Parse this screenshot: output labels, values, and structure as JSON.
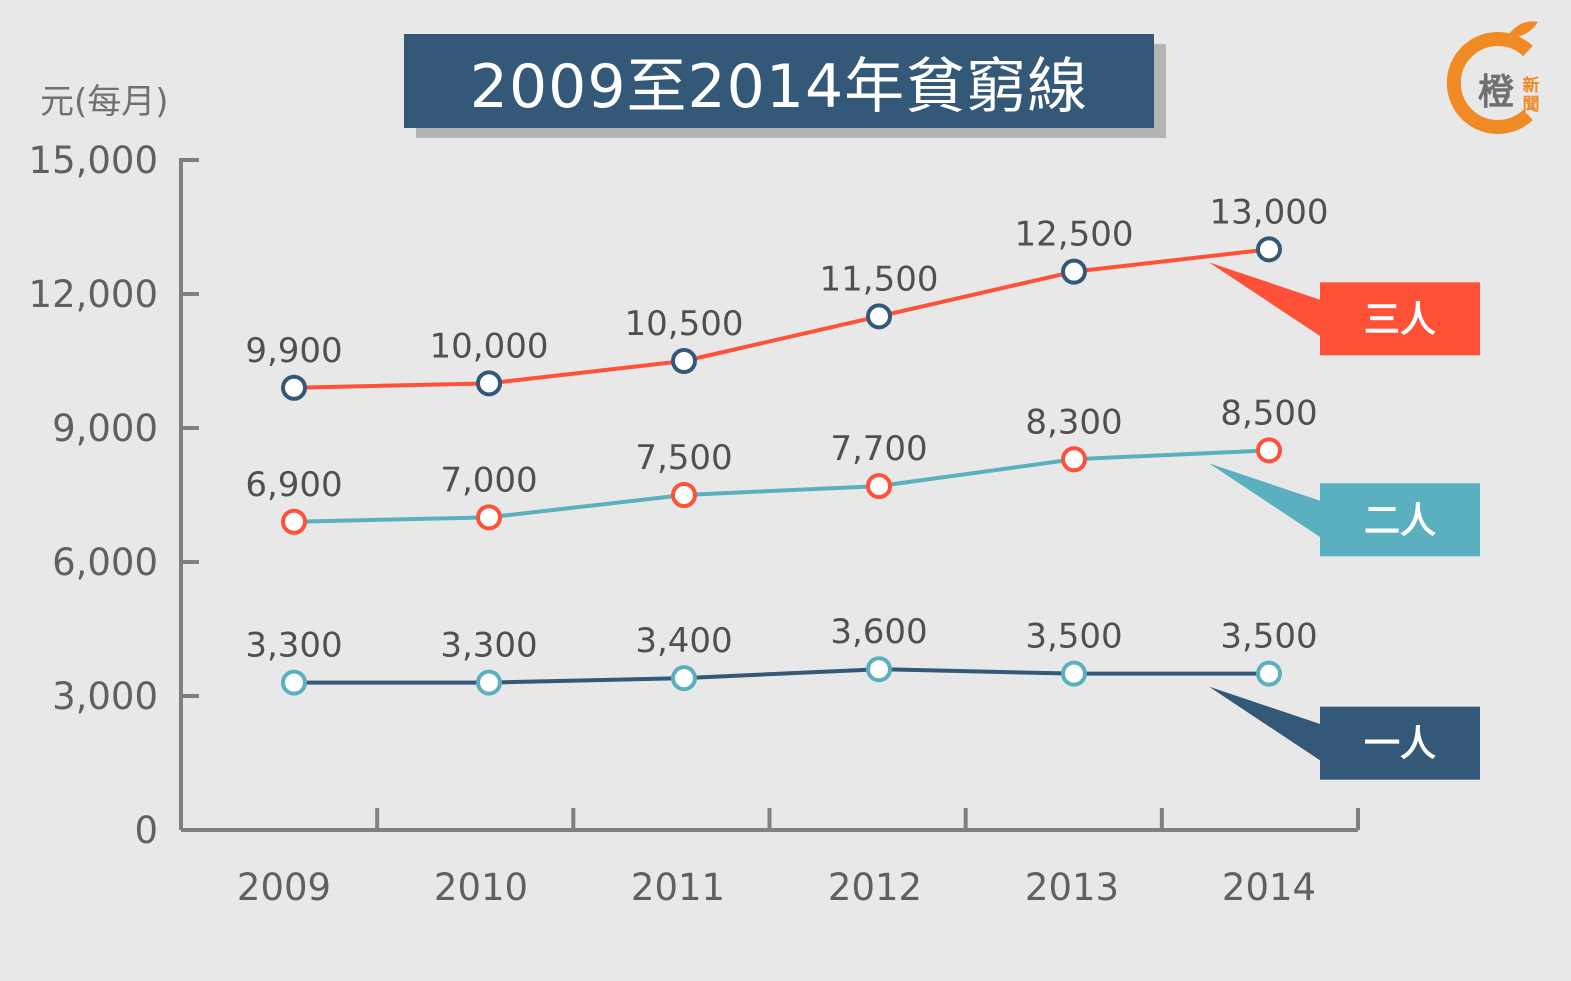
{
  "chart_data": {
    "type": "line",
    "title": "2009至2014年貧窮線",
    "ylabel": "元(每月)",
    "xlabel": "",
    "x": [
      "2009",
      "2010",
      "2011",
      "2012",
      "2013",
      "2014"
    ],
    "yticks": [
      "0",
      "3,000",
      "6,000",
      "9,000",
      "12,000",
      "15,000"
    ],
    "ylim": [
      0,
      15000
    ],
    "grid": false,
    "series": [
      {
        "name": "三人",
        "line_color": "#ff5038",
        "marker_color": "#345878",
        "values": [
          9900,
          10000,
          10500,
          11500,
          12500,
          13000
        ],
        "labels": [
          "9,900",
          "10,000",
          "10,500",
          "11,500",
          "12,500",
          "13,000"
        ]
      },
      {
        "name": "二人",
        "line_color": "#5bb0c0",
        "marker_color": "#ff5038",
        "values": [
          6900,
          7000,
          7500,
          7700,
          8300,
          8500
        ],
        "labels": [
          "6,900",
          "7,000",
          "7,500",
          "7,700",
          "8,300",
          "8,500"
        ]
      },
      {
        "name": "一人",
        "line_color": "#345878",
        "marker_color": "#5bb0c0",
        "values": [
          3300,
          3300,
          3400,
          3600,
          3500,
          3500
        ],
        "labels": [
          "3,300",
          "3,300",
          "3,400",
          "3,600",
          "3,500",
          "3,500"
        ]
      }
    ]
  },
  "logo": {
    "char": "橙",
    "small_chars": [
      "新",
      "聞"
    ],
    "color": "#f08a24"
  }
}
